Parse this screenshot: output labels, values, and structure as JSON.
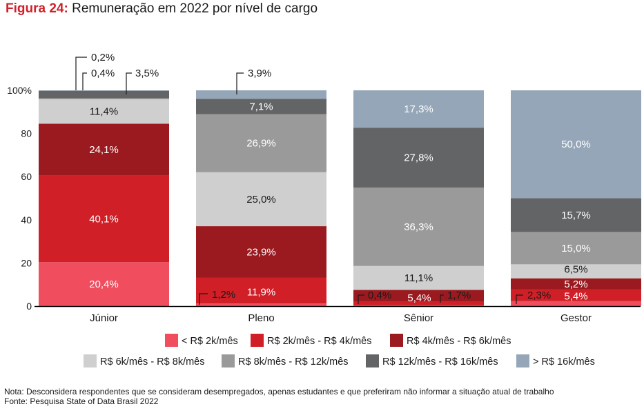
{
  "title": {
    "figure": "Figura 24:",
    "text": "Remuneração em 2022 por nível de cargo"
  },
  "notes": {
    "note": "Nota: Desconsidera respondentes que se consideram desempregados, apenas estudantes e que preferiram não informar a situação atual de trabalho",
    "source": "Fonte: Pesquisa State of Data Brasil 2022"
  },
  "chart_data": {
    "type": "bar",
    "stacked": true,
    "categories": [
      "Júnior",
      "Pleno",
      "Sênior",
      "Gestor"
    ],
    "ylim": [
      0,
      100
    ],
    "yticks": [
      "0",
      "20",
      "40",
      "60",
      "80",
      "100%"
    ],
    "legend_position": "bottom",
    "series": [
      {
        "name": "< R$ 2k/mês",
        "color": "#f04d5e",
        "values": [
          20.4,
          1.2,
          0.4,
          2.3
        ],
        "labels": [
          "20,4%",
          "1,2%",
          "0,4%",
          "2,3%"
        ]
      },
      {
        "name": "R$ 2k/mês - R$ 4k/mês",
        "color": "#d01f27",
        "values": [
          40.1,
          11.9,
          1.7,
          5.4
        ],
        "labels": [
          "40,1%",
          "11,9%",
          "1,7%",
          "5,4%"
        ]
      },
      {
        "name": "R$ 4k/mês - R$ 6k/mês",
        "color": "#9b1a1f",
        "values": [
          24.1,
          23.9,
          5.4,
          5.2
        ],
        "labels": [
          "24,1%",
          "23,9%",
          "5,4%",
          "5,2%"
        ]
      },
      {
        "name": "R$ 6k/mês - R$ 8k/mês",
        "color": "#cfcfcf",
        "values": [
          11.4,
          25.0,
          11.1,
          6.5
        ],
        "labels": [
          "11,4%",
          "25,0%",
          "11,1%",
          "6,5%"
        ]
      },
      {
        "name": "R$ 8k/mês - R$ 12k/mês",
        "color": "#9a9a9a",
        "values": [
          0.4,
          26.9,
          36.3,
          15.0
        ],
        "labels": [
          "0,4%",
          "26,9%",
          "36,3%",
          "15,0%"
        ]
      },
      {
        "name": "R$ 12k/mês - R$ 16k/mês",
        "color": "#636466",
        "values": [
          3.5,
          7.1,
          27.8,
          15.7
        ],
        "labels": [
          "3,5%",
          "7,1%",
          "27,8%",
          "15,7%"
        ]
      },
      {
        "name": "> R$ 16k/mês",
        "color": "#95a6b8",
        "values": [
          0.2,
          3.9,
          17.3,
          50.0
        ],
        "labels": [
          "0,2%",
          "3,9%",
          "17,3%",
          "50,0%"
        ]
      }
    ]
  }
}
